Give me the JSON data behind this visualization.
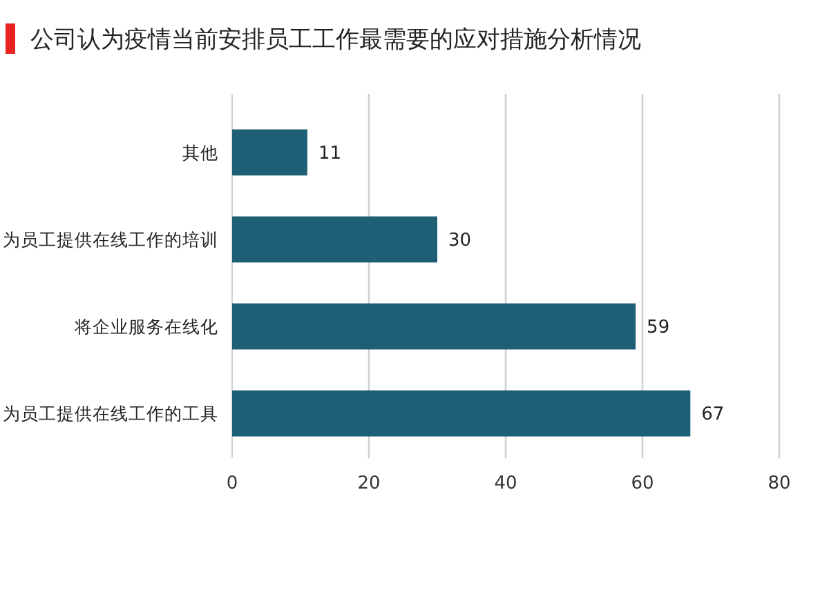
{
  "chart_data": {
    "type": "bar",
    "orientation": "horizontal",
    "title": "公司认为疫情当前安排员工工作最需要的应对措施分析情况",
    "categories": [
      "其他",
      "为员工提供在线工作的培训",
      "将企业服务在线化",
      "为员工提供在线工作的工具"
    ],
    "values": [
      11,
      30,
      59,
      67
    ],
    "color": "#1f5f75",
    "data_labels": true,
    "xlim": [
      0,
      80
    ],
    "xticks": [
      0,
      20,
      40,
      60,
      80
    ],
    "grid": "x"
  }
}
